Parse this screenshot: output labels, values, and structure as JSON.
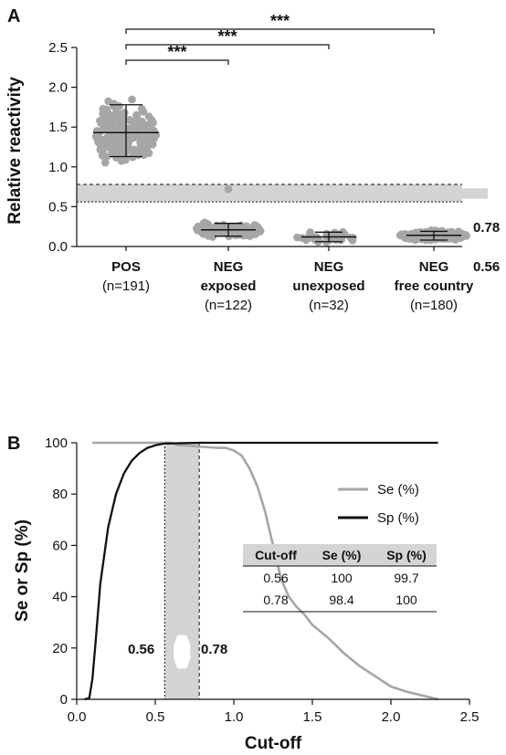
{
  "colors": {
    "dot": "#a6a6a6",
    "band": "#d4d4d4",
    "se": "#a6a6a6",
    "sp": "#111111"
  },
  "chart_data": [
    {
      "panel_label": "A",
      "type": "scatter",
      "ylabel": "Relative reactivity",
      "ylim": [
        0,
        2.5
      ],
      "yticks": [
        "0.0",
        "0.5",
        "1.0",
        "1.5",
        "2.0",
        "2.5"
      ],
      "threshold_labels": [
        "0.78",
        "0.56"
      ],
      "band": [
        0.56,
        0.78
      ],
      "groups": [
        {
          "name": "POS",
          "sub": "",
          "n": "(n=191)",
          "mean": 1.43,
          "sd_low": 1.13,
          "sd_high": 1.78,
          "min": 0.62,
          "max": 2.3,
          "count": 191
        },
        {
          "name": "NEG",
          "sub": "exposed",
          "n": "(n=122)",
          "mean": 0.21,
          "sd_low": 0.13,
          "sd_high": 0.29,
          "min": 0.08,
          "max": 0.5,
          "outlier": 0.72,
          "count": 122
        },
        {
          "name": "NEG",
          "sub": "unexposed",
          "n": "(n=32)",
          "mean": 0.12,
          "sd_low": 0.06,
          "sd_high": 0.18,
          "min": 0.04,
          "max": 0.31,
          "count": 32
        },
        {
          "name": "NEG",
          "sub": "free country",
          "n": "(n=180)",
          "mean": 0.14,
          "sd_low": 0.08,
          "sd_high": 0.19,
          "min": 0.05,
          "max": 0.26,
          "count": 180
        }
      ],
      "significance": [
        {
          "from": 0,
          "to": 1,
          "label": "***"
        },
        {
          "from": 0,
          "to": 2,
          "label": "***"
        },
        {
          "from": 0,
          "to": 3,
          "label": "***"
        }
      ]
    },
    {
      "panel_label": "B",
      "type": "line",
      "xlabel": "Cut-off",
      "ylabel": "Se or Sp (%)",
      "xlim": [
        0,
        2.5
      ],
      "ylim": [
        0,
        100
      ],
      "xticks": [
        "0.0",
        "0.5",
        "1.0",
        "1.5",
        "2.0",
        "2.5"
      ],
      "yticks": [
        "0",
        "20",
        "40",
        "60",
        "80",
        "100"
      ],
      "band": [
        0.56,
        0.78
      ],
      "band_labels": [
        "0.56",
        "0.78"
      ],
      "legend": [
        {
          "name": "Se (%)"
        },
        {
          "name": "Sp (%)"
        }
      ],
      "series": [
        {
          "name": "Se (%)",
          "x": [
            0.1,
            0.6,
            0.65,
            0.7,
            0.8,
            0.9,
            0.95,
            1.0,
            1.05,
            1.1,
            1.15,
            1.2,
            1.25,
            1.3,
            1.35,
            1.4,
            1.45,
            1.5,
            1.6,
            1.7,
            1.8,
            1.9,
            2.0,
            2.1,
            2.2,
            2.3
          ],
          "y": [
            100,
            100,
            99,
            99,
            98.4,
            98,
            98,
            97,
            95,
            90,
            83,
            73,
            60,
            47,
            40,
            36,
            33,
            29,
            24,
            18,
            13,
            9,
            5,
            3,
            1.5,
            0
          ]
        },
        {
          "name": "Sp (%)",
          "x": [
            0.05,
            0.08,
            0.1,
            0.12,
            0.15,
            0.2,
            0.25,
            0.3,
            0.35,
            0.4,
            0.45,
            0.5,
            0.56,
            0.78,
            2.3
          ],
          "y": [
            0,
            0.5,
            8,
            22,
            45,
            67,
            80,
            88,
            93,
            96,
            98,
            99,
            99.7,
            100,
            100
          ]
        }
      ],
      "table": {
        "headers": [
          "Cut-off",
          "Se (%)",
          "Sp (%)"
        ],
        "rows": [
          [
            "0.56",
            "100",
            "99.7"
          ],
          [
            "0.78",
            "98.4",
            "100"
          ]
        ]
      }
    }
  ]
}
